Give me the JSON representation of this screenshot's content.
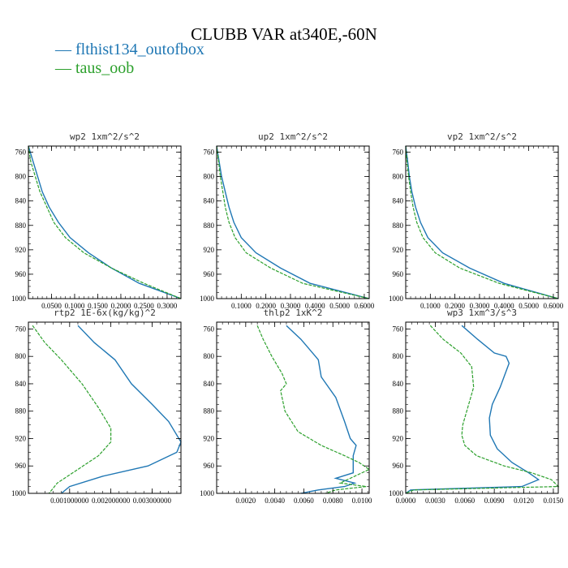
{
  "title": "CLUBB VAR at340E,-60N",
  "colors": {
    "series1": "#1f77b4",
    "series2": "#2ca02c"
  },
  "legend": [
    {
      "name": "flthist134_outofbox",
      "color": "#1f77b4",
      "style": "solid"
    },
    {
      "name": "taus_oob",
      "color": "#2ca02c",
      "style": "dashed"
    }
  ],
  "chart_data": [
    {
      "type": "line",
      "title": "wp2  1xm^2/s^2",
      "xlim": [
        0,
        0.33
      ],
      "ylim": [
        1000,
        750
      ],
      "y_inverted": true,
      "xticks": [
        0.05,
        0.1,
        0.15,
        0.2,
        0.25,
        0.3
      ],
      "xtick_labels": [
        "0.0500",
        "0.1000",
        "0.1500",
        "0.2000",
        "0.2500",
        "0.3000"
      ],
      "yticks": [
        760,
        800,
        840,
        880,
        920,
        960,
        1000
      ],
      "ytick_labels": [
        "760",
        "800",
        "840",
        "880",
        "920",
        "960",
        "1000"
      ],
      "series": [
        {
          "name": "flthist134_outofbox",
          "x": [
            0.0,
            0.01,
            0.02,
            0.03,
            0.045,
            0.065,
            0.09,
            0.13,
            0.18,
            0.24,
            0.33
          ],
          "y": [
            750,
            775,
            800,
            825,
            850,
            875,
            900,
            925,
            950,
            975,
            1000
          ]
        },
        {
          "name": "taus_oob",
          "x": [
            0.0,
            0.005,
            0.015,
            0.025,
            0.04,
            0.055,
            0.08,
            0.12,
            0.18,
            0.25,
            0.33
          ],
          "y": [
            750,
            775,
            800,
            825,
            850,
            875,
            900,
            925,
            950,
            975,
            1000
          ]
        }
      ]
    },
    {
      "type": "line",
      "title": "up2  1xm^2/s^2",
      "xlim": [
        0,
        0.62
      ],
      "ylim": [
        1000,
        750
      ],
      "y_inverted": true,
      "xticks": [
        0.1,
        0.2,
        0.3,
        0.4,
        0.5,
        0.6
      ],
      "xtick_labels": [
        "0.1000",
        "0.2000",
        "0.3000",
        "0.4000",
        "0.5000",
        "0.6000"
      ],
      "yticks": [
        760,
        800,
        840,
        880,
        920,
        960,
        1000
      ],
      "ytick_labels": [
        "760",
        "800",
        "840",
        "880",
        "920",
        "960",
        "1000"
      ],
      "series": [
        {
          "name": "flthist134_outofbox",
          "x": [
            0.0,
            0.01,
            0.02,
            0.035,
            0.05,
            0.07,
            0.1,
            0.16,
            0.26,
            0.38,
            0.62
          ],
          "y": [
            750,
            775,
            800,
            825,
            850,
            875,
            900,
            925,
            950,
            975,
            1000
          ]
        },
        {
          "name": "taus_oob",
          "x": [
            0.0,
            0.008,
            0.015,
            0.025,
            0.035,
            0.05,
            0.075,
            0.12,
            0.22,
            0.35,
            0.62
          ],
          "y": [
            750,
            775,
            800,
            825,
            850,
            875,
            900,
            925,
            950,
            975,
            1000
          ]
        }
      ]
    },
    {
      "type": "line",
      "title": "vp2  1xm^2/s^2",
      "xlim": [
        0,
        0.62
      ],
      "ylim": [
        1000,
        750
      ],
      "y_inverted": true,
      "xticks": [
        0.1,
        0.2,
        0.3,
        0.4,
        0.5,
        0.6
      ],
      "xtick_labels": [
        "0.1000",
        "0.2000",
        "0.3000",
        "0.4000",
        "0.5000",
        "0.6000"
      ],
      "yticks": [
        760,
        800,
        840,
        880,
        920,
        960,
        1000
      ],
      "ytick_labels": [
        "760",
        "800",
        "840",
        "880",
        "920",
        "960",
        "1000"
      ],
      "series": [
        {
          "name": "flthist134_outofbox",
          "x": [
            0.0,
            0.008,
            0.015,
            0.025,
            0.04,
            0.06,
            0.09,
            0.15,
            0.26,
            0.4,
            0.62
          ],
          "y": [
            750,
            775,
            800,
            825,
            850,
            875,
            900,
            925,
            950,
            975,
            1000
          ]
        },
        {
          "name": "taus_oob",
          "x": [
            0.0,
            0.005,
            0.012,
            0.02,
            0.03,
            0.045,
            0.07,
            0.12,
            0.22,
            0.38,
            0.62
          ],
          "y": [
            750,
            775,
            800,
            825,
            850,
            875,
            900,
            925,
            950,
            975,
            1000
          ]
        }
      ]
    },
    {
      "type": "line",
      "title": "rtp2  1E-6x(kg/kg)^2",
      "xlim": [
        0,
        0.0037
      ],
      "ylim": [
        1000,
        750
      ],
      "y_inverted": true,
      "xticks": [
        0.001,
        0.002,
        0.003
      ],
      "xtick_labels": [
        "0.001000000",
        "0.002000000",
        "0.003000000"
      ],
      "yticks": [
        760,
        800,
        840,
        880,
        920,
        960,
        1000
      ],
      "ytick_labels": [
        "760",
        "800",
        "840",
        "880",
        "920",
        "960",
        "1000"
      ],
      "series": [
        {
          "name": "flthist134_outofbox",
          "x": [
            0.0012,
            0.0016,
            0.0021,
            0.0025,
            0.003,
            0.0034,
            0.0037,
            0.0036,
            0.0029,
            0.0018,
            0.001,
            0.0008
          ],
          "y": [
            755,
            780,
            805,
            840,
            870,
            895,
            925,
            940,
            960,
            975,
            990,
            1000
          ]
        },
        {
          "name": "taus_oob",
          "x": [
            0.0001,
            0.0004,
            0.0008,
            0.0013,
            0.0017,
            0.002,
            0.002,
            0.0017,
            0.0012,
            0.0007,
            0.0005
          ],
          "y": [
            755,
            780,
            805,
            840,
            875,
            905,
            925,
            945,
            965,
            985,
            1000
          ]
        }
      ]
    },
    {
      "type": "line",
      "title": "thlp2  1xK^2",
      "xlim": [
        0,
        0.0105
      ],
      "ylim": [
        1000,
        750
      ],
      "y_inverted": true,
      "xticks": [
        0.002,
        0.004,
        0.006,
        0.008,
        0.01
      ],
      "xtick_labels": [
        "0.0020",
        "0.0040",
        "0.0060",
        "0.0080",
        "0.0100"
      ],
      "yticks": [
        760,
        800,
        840,
        880,
        920,
        960,
        1000
      ],
      "ytick_labels": [
        "760",
        "800",
        "840",
        "880",
        "920",
        "960",
        "1000"
      ],
      "series": [
        {
          "name": "flthist134_outofbox",
          "x": [
            0.0048,
            0.0058,
            0.0068,
            0.007,
            0.0072,
            0.0082,
            0.0088,
            0.0092,
            0.0096,
            0.0094,
            0.0094,
            0.0082,
            0.0095,
            0.0088,
            0.007,
            0.0058
          ],
          "y": [
            755,
            775,
            800,
            805,
            830,
            860,
            895,
            920,
            930,
            945,
            970,
            978,
            985,
            990,
            995,
            1000
          ]
        },
        {
          "name": "taus_oob",
          "x": [
            0.0028,
            0.0032,
            0.0038,
            0.0045,
            0.0048,
            0.0044,
            0.0047,
            0.0056,
            0.0072,
            0.0088,
            0.0098,
            0.0105,
            0.0095,
            0.0085,
            0.0103,
            0.0082,
            0.0075
          ],
          "y": [
            755,
            775,
            800,
            825,
            840,
            850,
            880,
            910,
            930,
            945,
            955,
            965,
            975,
            985,
            990,
            995,
            1000
          ]
        }
      ]
    },
    {
      "type": "line",
      "title": "wp3  1xm^3/s^3",
      "xlim": [
        0,
        0.0155
      ],
      "ylim": [
        1000,
        750
      ],
      "y_inverted": true,
      "xticks": [
        0.0,
        0.003,
        0.006,
        0.009,
        0.012,
        0.015
      ],
      "xtick_labels": [
        "0.0000",
        "0.0030",
        "0.0060",
        "0.0090",
        "0.0120",
        "0.0150"
      ],
      "yticks": [
        760,
        800,
        840,
        880,
        920,
        960,
        1000
      ],
      "ytick_labels": [
        "760",
        "800",
        "840",
        "880",
        "920",
        "960",
        "1000"
      ],
      "series": [
        {
          "name": "flthist134_outofbox",
          "x": [
            0.0057,
            0.0073,
            0.009,
            0.0102,
            0.0105,
            0.0096,
            0.0088,
            0.0085,
            0.0086,
            0.0093,
            0.0108,
            0.0125,
            0.0135,
            0.0118,
            0.0005,
            0.0
          ],
          "y": [
            755,
            775,
            795,
            800,
            810,
            845,
            870,
            890,
            915,
            935,
            955,
            970,
            980,
            990,
            995,
            1000
          ]
        },
        {
          "name": "taus_oob",
          "x": [
            0.0025,
            0.0038,
            0.0056,
            0.0067,
            0.0069,
            0.0063,
            0.0058,
            0.0057,
            0.006,
            0.0072,
            0.01,
            0.0128,
            0.0148,
            0.0155,
            0.0008,
            0.0
          ],
          "y": [
            755,
            775,
            795,
            815,
            845,
            875,
            900,
            915,
            930,
            945,
            960,
            970,
            980,
            990,
            995,
            1000
          ]
        }
      ]
    }
  ]
}
